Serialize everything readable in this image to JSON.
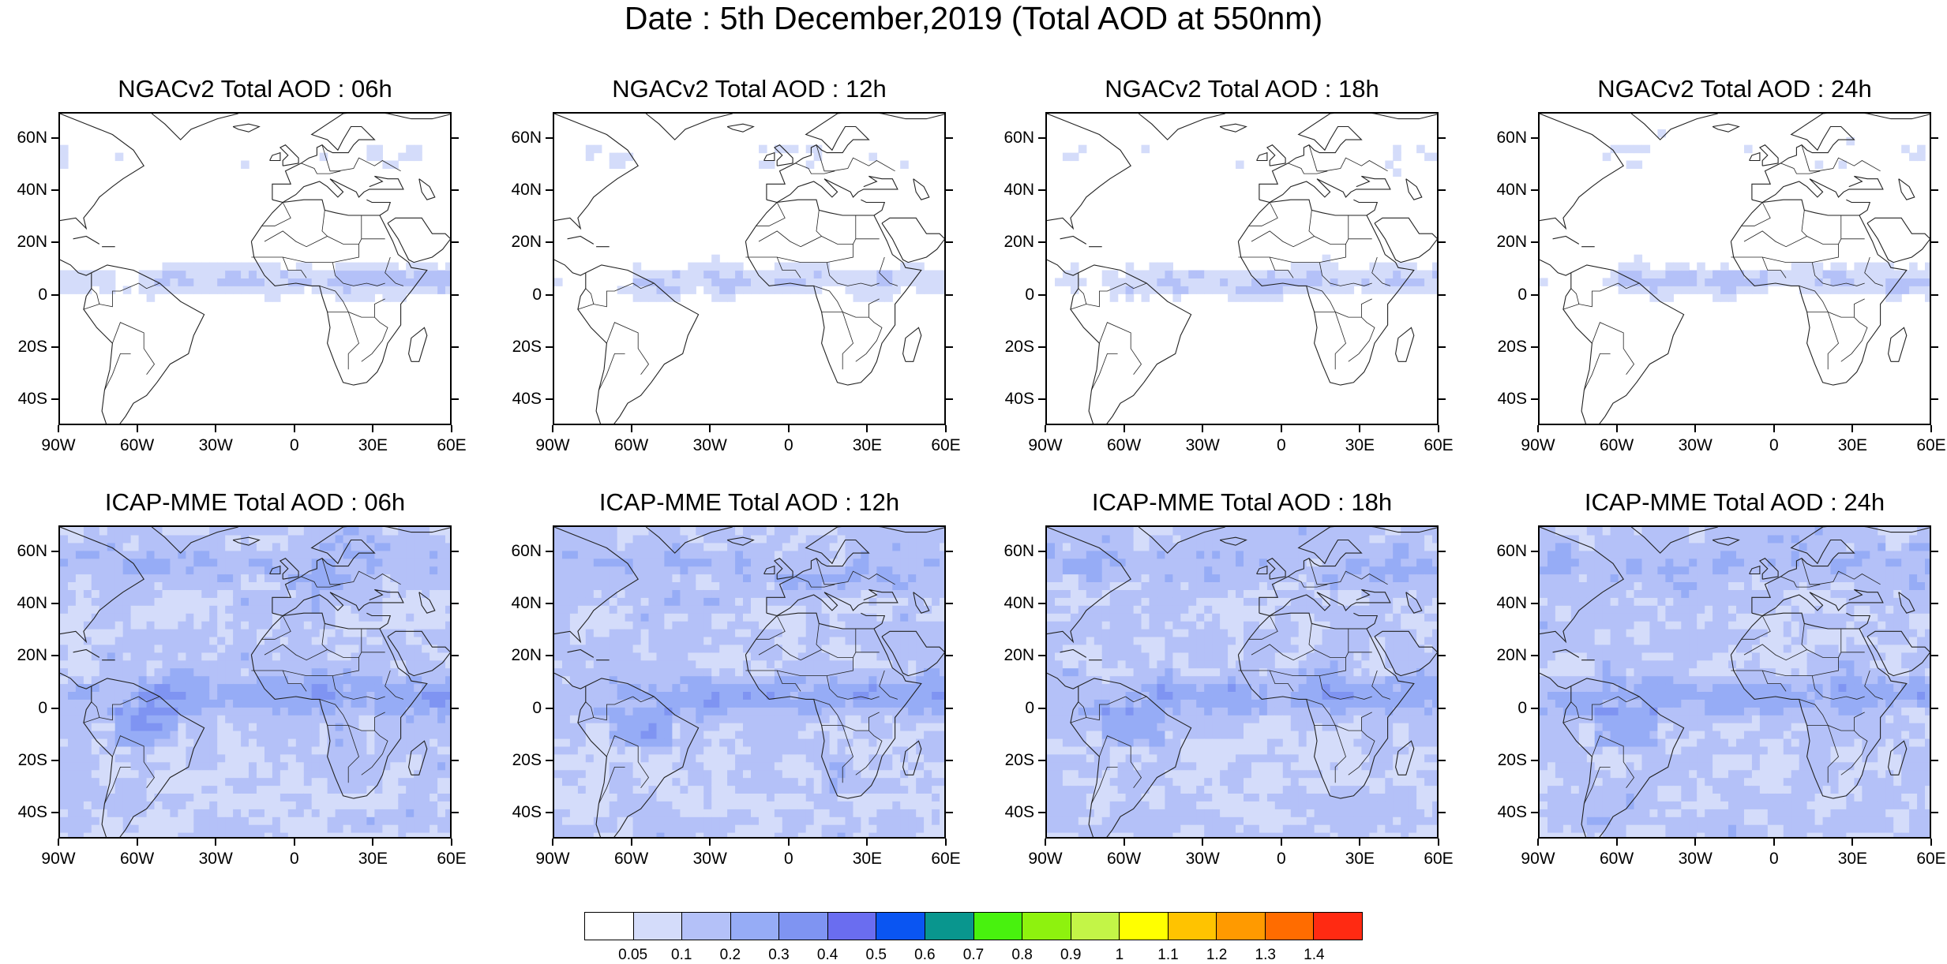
{
  "title": "Date : 5th December,2019 (Total AOD at 550nm)",
  "lat_labels": [
    "60N",
    "40N",
    "20N",
    "0",
    "20S",
    "40S"
  ],
  "lon_labels": [
    "90W",
    "60W",
    "30W",
    "0",
    "30E",
    "60E"
  ],
  "rows": [
    {
      "model": "NGACv2",
      "panels": [
        {
          "title": "NGACv2 Total AOD : 06h",
          "hour": "06h"
        },
        {
          "title": "NGACv2 Total AOD : 12h",
          "hour": "12h"
        },
        {
          "title": "NGACv2 Total AOD : 18h",
          "hour": "18h"
        },
        {
          "title": "NGACv2 Total AOD : 24h",
          "hour": "24h"
        }
      ]
    },
    {
      "model": "ICAP-MME",
      "panels": [
        {
          "title": "ICAP-MME Total AOD : 06h",
          "hour": "06h"
        },
        {
          "title": "ICAP-MME Total AOD : 12h",
          "hour": "12h"
        },
        {
          "title": "ICAP-MME Total AOD : 18h",
          "hour": "18h"
        },
        {
          "title": "ICAP-MME Total AOD : 24h",
          "hour": "24h"
        }
      ]
    }
  ],
  "colorbar": {
    "labels": [
      "0.05",
      "0.1",
      "0.2",
      "0.3",
      "0.4",
      "0.5",
      "0.6",
      "0.7",
      "0.8",
      "0.9",
      "1",
      "1.1",
      "1.2",
      "1.3",
      "1.4"
    ],
    "colors": [
      "#ffffff",
      "#d4dcfa",
      "#b4c1f8",
      "#96acf6",
      "#7f94f2",
      "#6a6df0",
      "#0a55f2",
      "#09968e",
      "#48f20e",
      "#8ef20e",
      "#c3f547",
      "#ffff00",
      "#ffc300",
      "#ff9a00",
      "#ff6c00",
      "#ff2a12"
    ]
  }
}
